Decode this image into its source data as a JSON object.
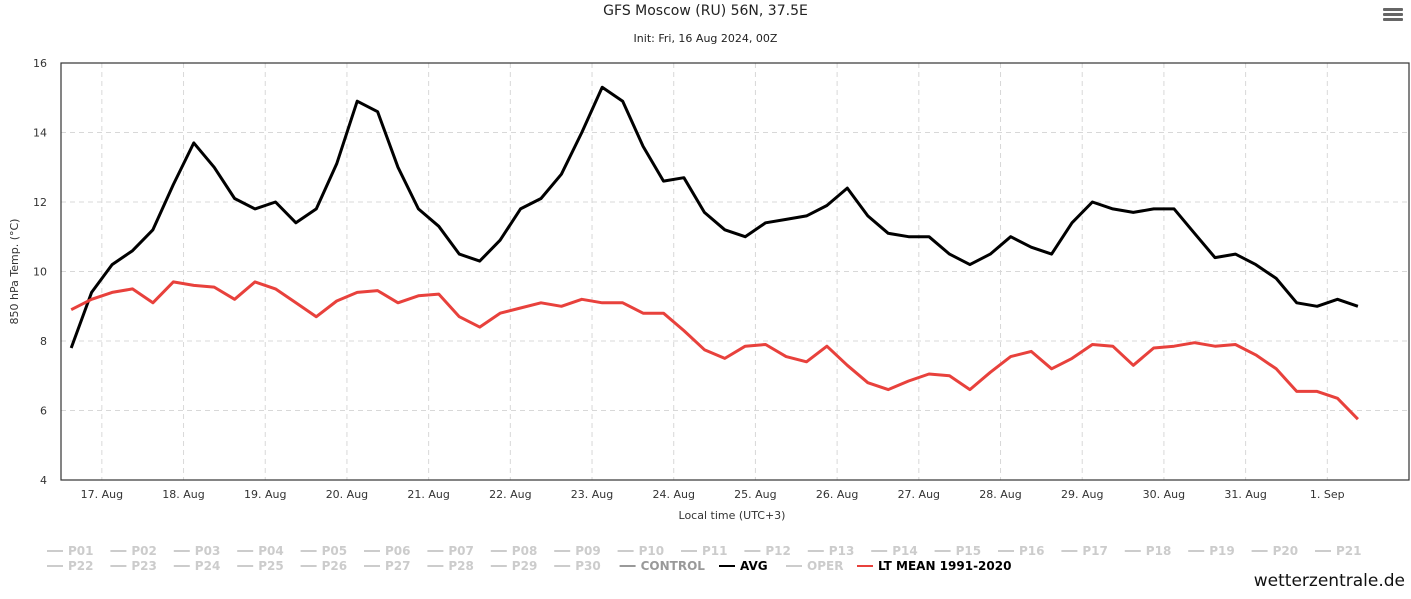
{
  "chart_data": {
    "type": "line",
    "title": "GFS Moscow (RU) 56N, 37.5E",
    "subtitle": "Init: Fri, 16 Aug 2024, 00Z",
    "xlabel": "Local time (UTC+3)",
    "ylabel": "850 hPa Temp. (°C)",
    "ylim": [
      4,
      16
    ],
    "yticks": [
      4,
      6,
      8,
      10,
      12,
      14,
      16
    ],
    "xlim": [
      0,
      16.5
    ],
    "x_tick_labels": [
      "17. Aug",
      "18. Aug",
      "19. Aug",
      "20. Aug",
      "21. Aug",
      "22. Aug",
      "23. Aug",
      "24. Aug",
      "25. Aug",
      "26. Aug",
      "27. Aug",
      "28. Aug",
      "29. Aug",
      "30. Aug",
      "31. Aug",
      "1. Sep"
    ],
    "x_ticks": [
      0.5,
      1.5,
      2.5,
      3.5,
      4.5,
      5.5,
      6.5,
      7.5,
      8.5,
      9.5,
      10.5,
      11.5,
      12.5,
      13.5,
      14.5,
      15.5
    ],
    "x_step": 0.25,
    "x_start": 0.125,
    "grid": true,
    "legend_position": "bottom",
    "series": [
      {
        "name": "AVG",
        "color": "#000000",
        "values": [
          7.8,
          9.4,
          10.2,
          10.6,
          11.2,
          12.5,
          13.7,
          13.0,
          12.1,
          11.8,
          12.0,
          11.4,
          11.8,
          13.1,
          14.9,
          14.6,
          13.0,
          11.8,
          11.3,
          10.5,
          10.3,
          10.9,
          11.8,
          12.1,
          12.8,
          14.0,
          15.3,
          14.9,
          13.6,
          12.6,
          12.7,
          11.7,
          11.2,
          11.0,
          11.4,
          11.5,
          11.6,
          11.9,
          12.4,
          11.6,
          11.1,
          11.0,
          11.0,
          10.5,
          10.2,
          10.5,
          11.0,
          10.7,
          10.5,
          11.4,
          12.0,
          11.8,
          11.7,
          11.8,
          11.8,
          11.1,
          10.4,
          10.5,
          10.2,
          9.8,
          9.1,
          9.0,
          9.2,
          9.0
        ]
      },
      {
        "name": "LT MEAN 1991-2020",
        "color": "#e8413c",
        "values": [
          8.9,
          9.2,
          9.4,
          9.5,
          9.1,
          9.7,
          9.6,
          9.55,
          9.2,
          9.7,
          9.5,
          9.1,
          8.7,
          9.15,
          9.4,
          9.45,
          9.1,
          9.3,
          9.35,
          8.7,
          8.4,
          8.8,
          8.95,
          9.1,
          9.0,
          9.2,
          9.1,
          9.1,
          8.8,
          8.8,
          8.3,
          7.75,
          7.5,
          7.85,
          7.9,
          7.55,
          7.4,
          7.85,
          7.3,
          6.8,
          6.6,
          6.85,
          7.05,
          7.0,
          6.6,
          7.1,
          7.55,
          7.7,
          7.2,
          7.5,
          7.9,
          7.85,
          7.3,
          7.8,
          7.85,
          7.95,
          7.85,
          7.9,
          7.6,
          7.2,
          6.55,
          6.55,
          6.35,
          5.75
        ]
      }
    ],
    "legend": {
      "row1": [
        "P01",
        "P02",
        "P03",
        "P04",
        "P05",
        "P06",
        "P07",
        "P08",
        "P09",
        "P10",
        "P11",
        "P12",
        "P13",
        "P14",
        "P15",
        "P16",
        "P17",
        "P18",
        "P19",
        "P20",
        "P21"
      ],
      "row2_grey": [
        "P22",
        "P23",
        "P24",
        "P25",
        "P26",
        "P27",
        "P28",
        "P29",
        "P30"
      ],
      "control": "CONTROL",
      "avg": "AVG",
      "oper": "OPER",
      "ltmean": "LT MEAN 1991-2020",
      "inactive_color": "#cccccc",
      "control_color": "#999999"
    }
  },
  "watermark": "wetterzentrale.de",
  "menu_icon": "hamburger-menu-icon"
}
